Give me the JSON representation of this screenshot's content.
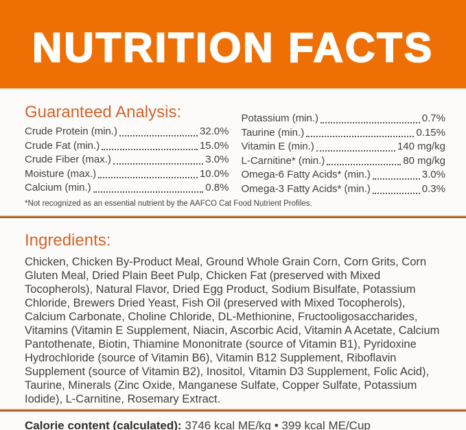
{
  "header": {
    "title": "NUTRITION FACTS"
  },
  "colors": {
    "band_orange": "#EE7005",
    "heading_orange": "#D2622A",
    "divider_light": "#ECCA90",
    "divider_dark": "#A6511E",
    "body_text": "#3E3E3E",
    "background": "#FCFBF9"
  },
  "guaranteed_analysis": {
    "heading": "Guaranteed Analysis:",
    "left_rows": [
      {
        "label": "Crude Protein (min.)",
        "value": "32.0%"
      },
      {
        "label": "Crude Fat (min.)",
        "value": "15.0%"
      },
      {
        "label": "Crude Fiber (max.)",
        "value": "3.0%"
      },
      {
        "label": "Moisture (max.)",
        "value": "10.0%"
      },
      {
        "label": "Calcium (min.)",
        "value": "0.8%"
      }
    ],
    "right_rows": [
      {
        "label": "Potassium (min.)",
        "value": "0.7%"
      },
      {
        "label": "Taurine (min.)",
        "value": "0.15%"
      },
      {
        "label": "Vitamin E (min.)",
        "value": "140 mg/kg"
      },
      {
        "label": "L-Carnitine* (min.)",
        "value": "80 mg/kg"
      },
      {
        "label": "Omega-6 Fatty Acids* (min.)",
        "value": "3.0%"
      },
      {
        "label": "Omega-3 Fatty Acids* (min.)",
        "value": "0.3%"
      }
    ],
    "footnote": "*Not recognized as an essential nutrient by the AAFCO Cat Food Nutrient Profiles."
  },
  "ingredients": {
    "heading": "Ingredients:",
    "text": "Chicken, Chicken By-Product Meal, Ground Whole Grain Corn, Corn Grits, Corn Gluten Meal, Dried Plain Beet Pulp, Chicken Fat (preserved with Mixed Tocopherols), Natural Flavor, Dried Egg Product, Sodium Bisulfate, Potassium Chloride, Brewers Dried Yeast, Fish Oil (preserved with Mixed Tocopherols), Calcium Carbonate, Choline Chloride, DL-Methionine, Fructooligosaccharides, Vitamins (Vitamin E Supplement, Niacin, Ascorbic Acid, Vitamin A Acetate, Calcium Pantothenate, Biotin, Thiamine Mononitrate (source of Vitamin B1), Pyridoxine Hydrochloride (source of Vitamin B6), Vitamin B12 Supplement, Riboflavin Supplement (source of Vitamin B2), Inositol, Vitamin D3 Supplement, Folic Acid), Taurine, Minerals (Zinc Oxide, Manganese Sulfate, Copper Sulfate, Potassium Iodide), L-Carnitine, Rosemary Extract."
  },
  "calorie": {
    "label": "Calorie content (calculated):",
    "value": " 3746 kcal ME/kg • 399 kcal ME/Cup"
  }
}
